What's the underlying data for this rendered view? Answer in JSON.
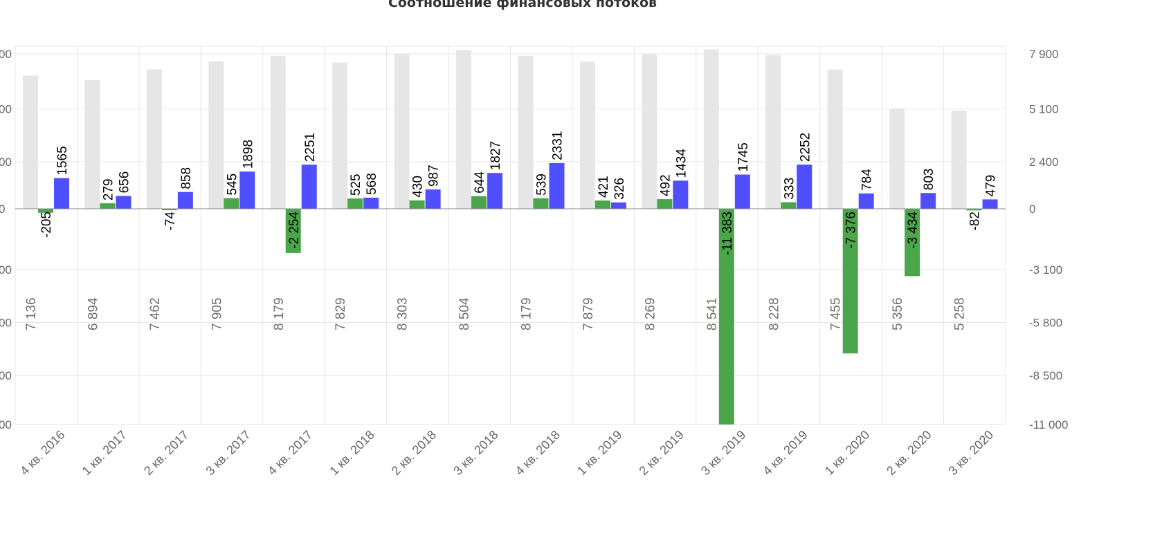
{
  "chart_data": {
    "type": "bar",
    "title": "Соотношение финансовых потоков",
    "categories": [
      "4 кв. 2016",
      "1 кв. 2017",
      "2 кв. 2017",
      "3 кв. 2017",
      "4 кв. 2017",
      "1 кв. 2018",
      "2 кв. 2018",
      "3 кв. 2018",
      "4 кв. 2018",
      "1 кв. 2019",
      "2 кв. 2019",
      "3 кв. 2019",
      "4 кв. 2019",
      "1 кв. 2020",
      "2 кв. 2020",
      "3 кв. 2020"
    ],
    "series": [
      {
        "color": "#e6e6e6",
        "axis": "left",
        "values": [
          7136,
          6894,
          7462,
          7905,
          8179,
          7829,
          8303,
          8504,
          8179,
          7879,
          8269,
          8541,
          8228,
          7455,
          5356,
          5258
        ],
        "labels": [
          "7 136",
          "6 894",
          "7 462",
          "7 905",
          "8 179",
          "7 829",
          "8 303",
          "8 504",
          "8 179",
          "7 879",
          "8 269",
          "8 541",
          "8 228",
          "7 455",
          "5 356",
          "5 258"
        ]
      },
      {
        "color": "#4ba54b",
        "axis": "right",
        "values": [
          -205,
          279,
          -74,
          545,
          -2254,
          525,
          430,
          644,
          539,
          421,
          492,
          -11383,
          333,
          -7376,
          -3434,
          -82
        ],
        "labels": [
          "-205",
          "279",
          "-74",
          "545",
          "-2 254",
          "525",
          "430",
          "644",
          "539",
          "421",
          "492",
          "-11 383",
          "333",
          "-7 376",
          "-3 434",
          "-82"
        ]
      },
      {
        "color": "#4f4fff",
        "axis": "right",
        "values": [
          1565,
          656,
          858,
          1898,
          2251,
          568,
          987,
          1827,
          2331,
          326,
          1434,
          1745,
          2252,
          784,
          803,
          479
        ],
        "labels": [
          "1565",
          "656",
          "858",
          "1898",
          "2251",
          "568",
          "987",
          "1827",
          "2331",
          "326",
          "1434",
          "1745",
          "2252",
          "784",
          "803",
          "479"
        ]
      }
    ],
    "y_right": {
      "ylim": [
        -11000,
        7900
      ],
      "ticks": [
        7900,
        5100,
        2400,
        0,
        -3100,
        -5800,
        -8500,
        -11000
      ],
      "tick_labels": [
        "7 900",
        "5 100",
        "2 400",
        "0",
        "-3 100",
        "-5 800",
        "-8 500",
        "-11 000"
      ]
    },
    "y_left": {
      "tick_labels": [
        "00",
        "00",
        "00",
        "0",
        "00",
        "00",
        "00",
        "00"
      ]
    },
    "grid": true,
    "legend": "none"
  }
}
